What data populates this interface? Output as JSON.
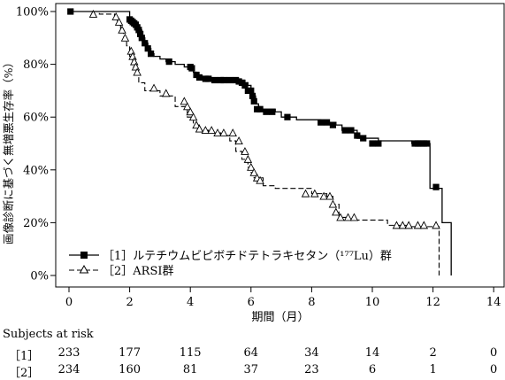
{
  "chart_data": {
    "type": "line",
    "title": "",
    "xlabel": "期間（月）",
    "ylabel": "画像診断に基づく無増悪生存率（%）",
    "xlim": [
      0,
      14
    ],
    "ylim": [
      0,
      100
    ],
    "x_ticks": [
      "0",
      "2",
      "4",
      "6",
      "8",
      "10",
      "12",
      "14"
    ],
    "y_ticks": [
      "0%",
      "20%",
      "40%",
      "60%",
      "80%",
      "100%"
    ],
    "grid": false,
    "legend_position": "bottom-left",
    "series": [
      {
        "name": "［1］ルテチウムビピボチドテトラキセタン（¹⁷⁷Lu）群",
        "line_style": "solid",
        "marker": "filled-square",
        "color": "#000000",
        "steps": [
          [
            0,
            100
          ],
          [
            2.0,
            97
          ],
          [
            2.1,
            96
          ],
          [
            2.2,
            95
          ],
          [
            2.3,
            93
          ],
          [
            2.4,
            90
          ],
          [
            2.5,
            88
          ],
          [
            2.6,
            86
          ],
          [
            2.7,
            84
          ],
          [
            2.8,
            83
          ],
          [
            3.0,
            82
          ],
          [
            3.2,
            81
          ],
          [
            3.5,
            80
          ],
          [
            3.8,
            79
          ],
          [
            4.0,
            78
          ],
          [
            4.1,
            77
          ],
          [
            4.2,
            76
          ],
          [
            4.35,
            75
          ],
          [
            4.5,
            74.5
          ],
          [
            5.0,
            74
          ],
          [
            5.8,
            73
          ],
          [
            5.9,
            72
          ],
          [
            6.0,
            70
          ],
          [
            6.05,
            68
          ],
          [
            6.15,
            65
          ],
          [
            6.25,
            63
          ],
          [
            6.8,
            62
          ],
          [
            7.0,
            60
          ],
          [
            7.5,
            59
          ],
          [
            8.3,
            58
          ],
          [
            8.8,
            57
          ],
          [
            9.0,
            55
          ],
          [
            9.5,
            52
          ],
          [
            10.2,
            51
          ],
          [
            11.3,
            50
          ],
          [
            11.9,
            33
          ],
          [
            12.3,
            20
          ],
          [
            12.6,
            0
          ]
        ],
        "markers": [
          [
            0.05,
            100
          ],
          [
            2.0,
            97
          ],
          [
            2.05,
            96.5
          ],
          [
            2.1,
            96
          ],
          [
            2.15,
            95.5
          ],
          [
            2.2,
            95
          ],
          [
            2.25,
            94
          ],
          [
            2.3,
            93
          ],
          [
            2.35,
            91.5
          ],
          [
            2.4,
            90
          ],
          [
            2.5,
            88
          ],
          [
            2.6,
            86
          ],
          [
            2.7,
            84
          ],
          [
            3.3,
            81
          ],
          [
            4.0,
            79
          ],
          [
            4.05,
            78.5
          ],
          [
            4.2,
            76
          ],
          [
            4.3,
            75
          ],
          [
            4.5,
            74.5
          ],
          [
            4.6,
            74.5
          ],
          [
            4.8,
            74
          ],
          [
            5.0,
            74
          ],
          [
            5.1,
            74
          ],
          [
            5.3,
            74
          ],
          [
            5.5,
            74
          ],
          [
            5.6,
            73.5
          ],
          [
            5.7,
            73
          ],
          [
            5.8,
            72
          ],
          [
            5.9,
            70
          ],
          [
            6.0,
            70
          ],
          [
            6.05,
            68
          ],
          [
            6.1,
            66
          ],
          [
            6.2,
            63
          ],
          [
            6.3,
            63
          ],
          [
            6.5,
            62
          ],
          [
            6.7,
            62
          ],
          [
            7.2,
            60
          ],
          [
            8.3,
            58
          ],
          [
            8.5,
            58
          ],
          [
            8.7,
            57
          ],
          [
            9.1,
            55
          ],
          [
            9.3,
            55
          ],
          [
            9.5,
            53
          ],
          [
            9.7,
            52
          ],
          [
            10.0,
            50
          ],
          [
            10.2,
            50
          ],
          [
            11.4,
            50
          ],
          [
            11.5,
            50
          ],
          [
            11.6,
            50
          ],
          [
            11.7,
            50
          ],
          [
            11.8,
            50
          ],
          [
            12.1,
            33.5
          ]
        ]
      },
      {
        "name": "［2］ARSI群",
        "line_style": "dashed",
        "marker": "open-triangle",
        "color": "#000000",
        "steps": [
          [
            0,
            100
          ],
          [
            1.0,
            99
          ],
          [
            1.5,
            98
          ],
          [
            1.6,
            96
          ],
          [
            1.7,
            93
          ],
          [
            1.8,
            90
          ],
          [
            1.9,
            87
          ],
          [
            2.0,
            83
          ],
          [
            2.1,
            79
          ],
          [
            2.2,
            76
          ],
          [
            2.3,
            73
          ],
          [
            2.5,
            70
          ],
          [
            3.0,
            68
          ],
          [
            3.5,
            64
          ],
          [
            3.9,
            60
          ],
          [
            4.1,
            57
          ],
          [
            4.3,
            55
          ],
          [
            4.6,
            54
          ],
          [
            5.0,
            53
          ],
          [
            5.3,
            51
          ],
          [
            5.5,
            47
          ],
          [
            5.7,
            44
          ],
          [
            5.9,
            41
          ],
          [
            6.0,
            39
          ],
          [
            6.1,
            37
          ],
          [
            6.4,
            34
          ],
          [
            6.8,
            33
          ],
          [
            8.0,
            31
          ],
          [
            8.5,
            30
          ],
          [
            8.7,
            27
          ],
          [
            8.9,
            22
          ],
          [
            9.2,
            21
          ],
          [
            10.5,
            19
          ],
          [
            11.2,
            18.5
          ],
          [
            12.2,
            0
          ]
        ],
        "markers": [
          [
            0.8,
            99
          ],
          [
            1.55,
            98
          ],
          [
            1.65,
            96
          ],
          [
            1.75,
            93
          ],
          [
            1.85,
            90
          ],
          [
            2.05,
            85
          ],
          [
            2.1,
            83
          ],
          [
            2.15,
            81
          ],
          [
            2.2,
            79
          ],
          [
            2.25,
            77
          ],
          [
            2.8,
            71
          ],
          [
            3.2,
            69
          ],
          [
            3.8,
            66
          ],
          [
            3.9,
            64
          ],
          [
            4.0,
            62
          ],
          [
            4.1,
            60
          ],
          [
            4.2,
            57
          ],
          [
            4.3,
            55.5
          ],
          [
            4.5,
            55
          ],
          [
            4.7,
            55
          ],
          [
            4.9,
            54
          ],
          [
            5.1,
            54
          ],
          [
            5.4,
            54
          ],
          [
            5.6,
            51
          ],
          [
            5.8,
            47
          ],
          [
            5.9,
            44
          ],
          [
            6.0,
            41
          ],
          [
            6.1,
            39
          ],
          [
            6.2,
            37
          ],
          [
            6.3,
            36
          ],
          [
            7.8,
            31
          ],
          [
            8.1,
            31
          ],
          [
            8.4,
            30
          ],
          [
            8.6,
            30
          ],
          [
            8.7,
            27
          ],
          [
            8.8,
            24
          ],
          [
            8.95,
            22
          ],
          [
            9.2,
            22
          ],
          [
            9.4,
            22
          ],
          [
            10.8,
            19
          ],
          [
            11.0,
            19
          ],
          [
            11.2,
            19
          ],
          [
            11.5,
            19
          ],
          [
            11.7,
            19
          ],
          [
            12.1,
            19
          ]
        ]
      }
    ],
    "risk_table": {
      "header": "Subjects at risk",
      "times": [
        0,
        2,
        4,
        6,
        8,
        10,
        12,
        14
      ],
      "rows": [
        {
          "label": "［1］",
          "counts": [
            "233",
            "177",
            "115",
            "64",
            "34",
            "14",
            "2",
            "0"
          ]
        },
        {
          "label": "［2］",
          "counts": [
            "234",
            "160",
            "81",
            "37",
            "23",
            "6",
            "1",
            "0"
          ]
        }
      ]
    }
  }
}
